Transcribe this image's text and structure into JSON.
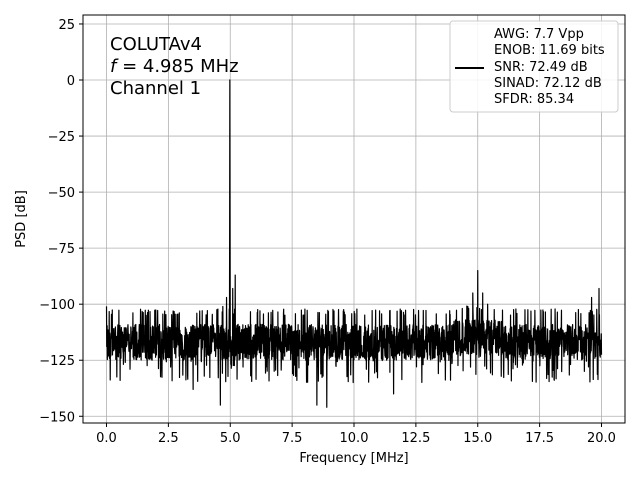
{
  "chart_data": {
    "type": "line",
    "title": "",
    "xlabel": "Frequency [MHz]",
    "ylabel": "PSD [dB]",
    "xlim": [
      -0.95,
      20.95
    ],
    "ylim": [
      -153,
      29
    ],
    "xticks": [
      0.0,
      2.5,
      5.0,
      7.5,
      10.0,
      12.5,
      15.0,
      17.5,
      20.0
    ],
    "xtick_labels": [
      "0.0",
      "2.5",
      "5.0",
      "7.5",
      "10.0",
      "12.5",
      "15.0",
      "17.5",
      "20.0"
    ],
    "yticks": [
      25,
      0,
      -25,
      -50,
      -75,
      -100,
      -125,
      -150
    ],
    "ytick_labels": [
      "25",
      "0",
      "−25",
      "−50",
      "−75",
      "−100",
      "−125",
      "−150"
    ],
    "grid": true,
    "annotation": {
      "line1": "COLUTAv4",
      "line2_italic": "f",
      "line2_rest": " = 4.985 MHz",
      "line3": "Channel 1"
    },
    "legend": {
      "placement": "top-right",
      "lines": [
        "AWG: 7.7 Vpp",
        "ENOB: 11.69 bits",
        "SNR: 72.49 dB",
        "SINAD: 72.12 dB",
        "SFDR: 85.34"
      ]
    },
    "series": [
      {
        "color": "#000000",
        "noise_floor_db": -117,
        "noise_band_db": [
          -125,
          -105
        ],
        "signal_peak": {
          "x": 4.985,
          "y": 0
        },
        "spurs": [
          {
            "x": 4.7,
            "y": -101
          },
          {
            "x": 4.85,
            "y": -97
          },
          {
            "x": 5.1,
            "y": -93
          },
          {
            "x": 5.2,
            "y": -87
          },
          {
            "x": 14.6,
            "y": -101
          },
          {
            "x": 14.8,
            "y": -95
          },
          {
            "x": 15.0,
            "y": -85
          },
          {
            "x": 15.2,
            "y": -95
          },
          {
            "x": 15.4,
            "y": -100
          },
          {
            "x": 19.6,
            "y": -97
          },
          {
            "x": 19.9,
            "y": -93
          }
        ],
        "dips": [
          {
            "x": 0.55,
            "y": -134
          },
          {
            "x": 3.5,
            "y": -138
          },
          {
            "x": 4.6,
            "y": -145
          },
          {
            "x": 8.5,
            "y": -145
          },
          {
            "x": 8.9,
            "y": -146
          },
          {
            "x": 11.6,
            "y": -140
          }
        ]
      }
    ]
  }
}
